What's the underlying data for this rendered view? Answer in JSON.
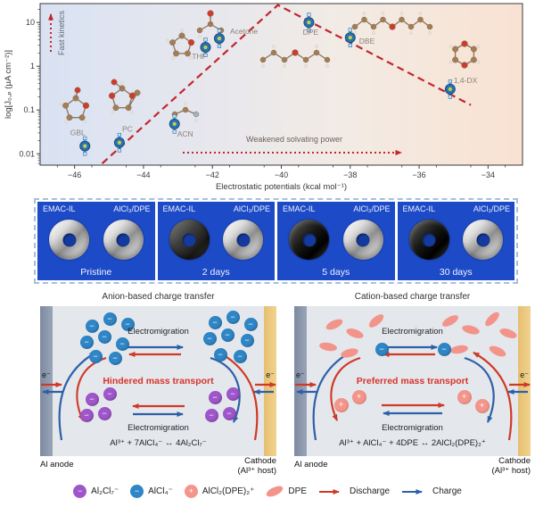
{
  "chart_data": {
    "type": "scatter",
    "xlabel": "Electrostatic potentials (kcal mol⁻¹)",
    "ylabel": "log[J₀,ₚ (µA cm⁻²)]",
    "xlim": [
      -47,
      -33
    ],
    "ylim_log": [
      0.0055,
      27
    ],
    "grid": false,
    "x_ticks": [
      {
        "v": -46,
        "label": "−46"
      },
      {
        "v": -44,
        "label": "−44"
      },
      {
        "v": -42,
        "label": "−42"
      },
      {
        "v": -40,
        "label": "−40"
      },
      {
        "v": -38,
        "label": "−38"
      },
      {
        "v": -36,
        "label": "−36"
      },
      {
        "v": -34,
        "label": "−34"
      }
    ],
    "y_ticks": [
      {
        "v": 10,
        "label": "10"
      },
      {
        "v": 1,
        "label": "1"
      },
      {
        "v": 0.1,
        "label": "0.1"
      },
      {
        "v": 0.01,
        "label": "0.01"
      }
    ],
    "points": [
      {
        "label": "GBL",
        "x": -45.7,
        "y": 0.015
      },
      {
        "label": "PC",
        "x": -44.7,
        "y": 0.018
      },
      {
        "label": "ACN",
        "x": -43.1,
        "y": 0.048
      },
      {
        "label": "THF",
        "x": -42.2,
        "y": 2.7
      },
      {
        "label": "Acetone",
        "x": -41.8,
        "y": 4.3
      },
      {
        "label": "DPE",
        "x": -39.2,
        "y": 10
      },
      {
        "label": "DBE",
        "x": -38.0,
        "y": 4.5
      },
      {
        "label": "1,4-DX",
        "x": -35.1,
        "y": 0.3
      }
    ],
    "trend_line": {
      "rise_from": [
        -45.2,
        0.006
      ],
      "peak": [
        -40.1,
        25
      ],
      "fall_to": [
        -34.5,
        0.13
      ]
    },
    "annotations": {
      "fast_kinetics": "Fast kinetics",
      "weakened_solvating": "Weakened solvating power"
    }
  },
  "photos": {
    "panels": [
      {
        "left_label": "EMAC-IL",
        "right_label": "AlCl₃/DPE",
        "caption": "Pristine",
        "left_coin": "silver",
        "right_coin": "silver"
      },
      {
        "left_label": "EMAC-IL",
        "right_label": "AlCl₃/DPE",
        "caption": "2 days",
        "left_coin": "dark",
        "right_coin": "silver"
      },
      {
        "left_label": "EMAC-IL",
        "right_label": "AlCl₃/DPE",
        "caption": "5 days",
        "left_coin": "black",
        "right_coin": "silver"
      },
      {
        "left_label": "EMAC-IL",
        "right_label": "AlCl₃/DPE",
        "caption": "30 days",
        "left_coin": "black",
        "right_coin": "silver"
      }
    ]
  },
  "diagrams": {
    "symbols": {
      "minus": "−",
      "plus": "+"
    },
    "left": {
      "title": "Anion-based charge transfer",
      "electromigration": "Electromigration",
      "transport": "Hindered mass transport",
      "equation": "Al³⁺ + 7AlCl₄⁻ ↔ 4Al₂Cl₇⁻",
      "electron": "e⁻",
      "anode": "Al anode",
      "cathode1": "Cathode",
      "cathode2": "(Al³⁺ host)"
    },
    "right": {
      "title": "Cation-based charge transfer",
      "electromigration": "Electromigration",
      "transport": "Preferred mass transport",
      "equation": "Al³⁺ + AlCl₄⁻ + 4DPE ↔ 2AlCl₂(DPE)₂⁺",
      "electron": "e⁻",
      "anode": "Al anode",
      "cathode1": "Cathode",
      "cathode2": "(Al³⁺ host)"
    }
  },
  "legend": {
    "items": [
      {
        "swatch": "purple-ion",
        "symbol": "−",
        "label": "Al₂Cl₇⁻"
      },
      {
        "swatch": "blue-ion",
        "symbol": "−",
        "label": "AlCl₄⁻"
      },
      {
        "swatch": "pink-ion",
        "symbol": "+",
        "label": "AlCl₂(DPE)₂⁺"
      },
      {
        "swatch": "dpe-ellipse",
        "label": "DPE"
      },
      {
        "swatch": "red-arrow",
        "label": "Discharge"
      },
      {
        "swatch": "blue-arrow",
        "label": "Charge"
      }
    ]
  },
  "colors": {
    "trend_red": "#c1272d",
    "discharge_red": "#cf3a28",
    "charge_blue": "#2e5fa9",
    "photo_blue": "#1d4bc8",
    "anion_blue": "#2f86c7",
    "cation_pink": "#f4958c",
    "heptachloride_purple": "#9f56cb",
    "anode_gray": "#8995ab",
    "cathode_yellow": "#e9c77d"
  }
}
